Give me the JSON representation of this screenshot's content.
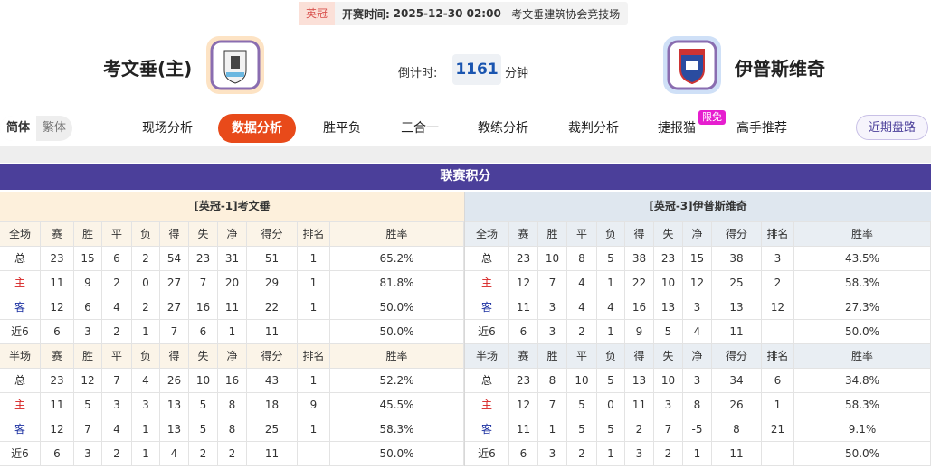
{
  "match": {
    "league": "英冠",
    "time_label": "开赛时间:",
    "time": "2025-12-30 02:00",
    "venue": "考文垂建筑协会竞技场",
    "home": "考文垂(主)",
    "away": "伊普斯维奇",
    "countdown_label": "倒计时:",
    "countdown": 1161,
    "countdown_unit": "分钟"
  },
  "nav": {
    "lang": [
      "简体",
      "繁体"
    ],
    "tabs": [
      "现场分析",
      "数据分析",
      "胜平负",
      "三合一",
      "教练分析",
      "裁判分析",
      "捷报猫",
      "高手推荐"
    ],
    "badge": "限免",
    "button": "近期盘路"
  },
  "section_title": "联赛积分",
  "tables": [
    {
      "title": "[英冠-1]考文垂",
      "full": {
        "header": [
          "全场",
          "赛",
          "胜",
          "平",
          "负",
          "得",
          "失",
          "净",
          "得分",
          "排名",
          "胜率"
        ],
        "rows": [
          [
            "总",
            23,
            15,
            6,
            2,
            54,
            23,
            31,
            51,
            1,
            "65.2%"
          ],
          [
            "主",
            11,
            9,
            2,
            0,
            27,
            7,
            20,
            29,
            1,
            "81.8%"
          ],
          [
            "客",
            12,
            6,
            4,
            2,
            27,
            16,
            11,
            22,
            1,
            "50.0%"
          ],
          [
            "近6",
            6,
            3,
            2,
            1,
            7,
            6,
            1,
            11,
            null,
            "50.0%"
          ]
        ]
      },
      "half": {
        "header": [
          "半场",
          "赛",
          "胜",
          "平",
          "负",
          "得",
          "失",
          "净",
          "得分",
          "排名",
          "胜率"
        ],
        "rows": [
          [
            "总",
            23,
            12,
            7,
            4,
            26,
            10,
            16,
            43,
            1,
            "52.2%"
          ],
          [
            "主",
            11,
            5,
            3,
            3,
            13,
            5,
            8,
            18,
            9,
            "45.5%"
          ],
          [
            "客",
            12,
            7,
            4,
            1,
            13,
            5,
            8,
            25,
            1,
            "58.3%"
          ],
          [
            "近6",
            6,
            3,
            2,
            1,
            4,
            2,
            2,
            11,
            null,
            "50.0%"
          ]
        ]
      }
    },
    {
      "title": "[英冠-3]伊普斯维奇",
      "full": {
        "header": [
          "全场",
          "赛",
          "胜",
          "平",
          "负",
          "得",
          "失",
          "净",
          "得分",
          "排名",
          "胜率"
        ],
        "rows": [
          [
            "总",
            23,
            10,
            8,
            5,
            38,
            23,
            15,
            38,
            3,
            "43.5%"
          ],
          [
            "主",
            12,
            7,
            4,
            1,
            22,
            10,
            12,
            25,
            2,
            "58.3%"
          ],
          [
            "客",
            11,
            3,
            4,
            4,
            16,
            13,
            3,
            13,
            12,
            "27.3%"
          ],
          [
            "近6",
            6,
            3,
            2,
            1,
            9,
            5,
            4,
            11,
            null,
            "50.0%"
          ]
        ]
      },
      "half": {
        "header": [
          "半场",
          "赛",
          "胜",
          "平",
          "负",
          "得",
          "失",
          "净",
          "得分",
          "排名",
          "胜率"
        ],
        "rows": [
          [
            "总",
            23,
            8,
            10,
            5,
            13,
            10,
            3,
            34,
            6,
            "34.8%"
          ],
          [
            "主",
            12,
            7,
            5,
            0,
            11,
            3,
            8,
            26,
            1,
            "58.3%"
          ],
          [
            "客",
            11,
            1,
            5,
            5,
            2,
            7,
            -5,
            8,
            21,
            "9.1%"
          ],
          [
            "近6",
            6,
            3,
            2,
            1,
            3,
            2,
            1,
            11,
            null,
            "50.0%"
          ]
        ]
      }
    }
  ]
}
